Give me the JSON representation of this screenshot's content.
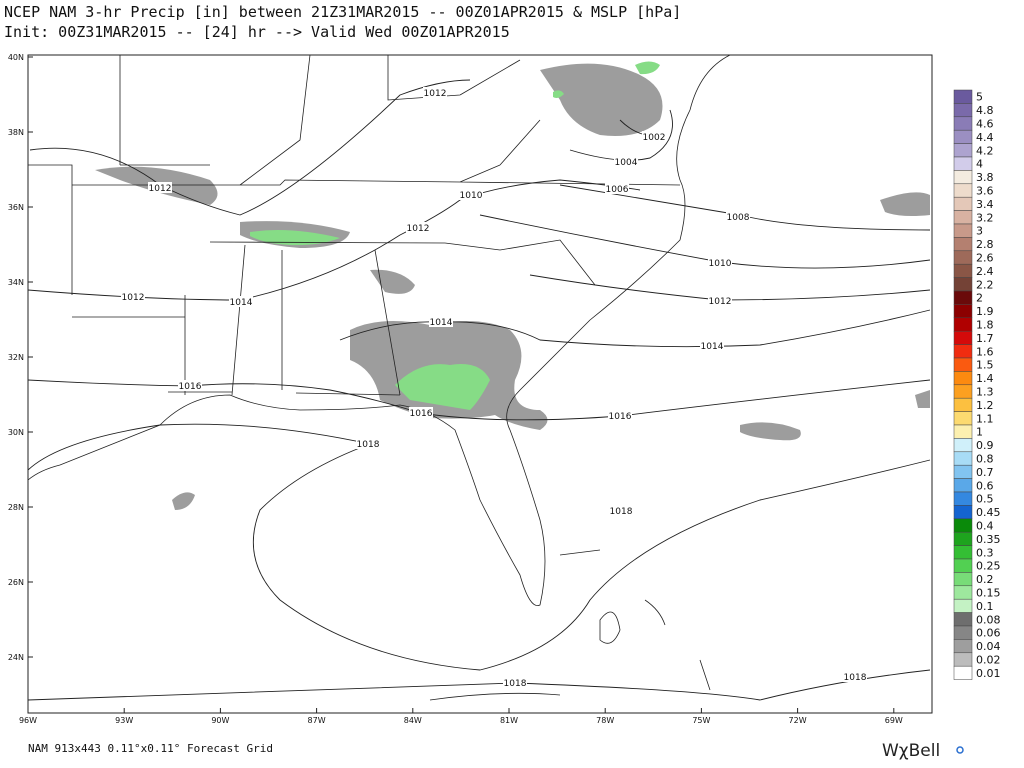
{
  "header": {
    "line1": "NCEP NAM 3-hr Precip [in] between 21Z31MAR2015 -- 00Z01APR2015 & MSLP [hPa]",
    "line2": "Init: 00Z31MAR2015 -- [24] hr --> Valid Wed 00Z01APR2015"
  },
  "map": {
    "lat_labels": [
      "40N",
      "38N",
      "36N",
      "34N",
      "32N",
      "30N",
      "28N",
      "26N",
      "24N"
    ],
    "lon_labels": [
      "96W",
      "93W",
      "90W",
      "87W",
      "84W",
      "81W",
      "78W",
      "75W",
      "72W",
      "69W"
    ],
    "isobar_labels": [
      "1012",
      "1012",
      "1010",
      "1012",
      "1006",
      "1004",
      "1002",
      "1008",
      "1010",
      "1012",
      "1014",
      "1012",
      "1014",
      "1014",
      "1016",
      "1016",
      "1016",
      "1018",
      "1018",
      "1018",
      "1018"
    ]
  },
  "colorbar": {
    "levels": [
      {
        "label": "5",
        "color": "#6a5a9e"
      },
      {
        "label": "4.8",
        "color": "#7a6aaa"
      },
      {
        "label": "4.6",
        "color": "#8a7cb6"
      },
      {
        "label": "4.4",
        "color": "#9b8fc2"
      },
      {
        "label": "4.2",
        "color": "#ada3cf"
      },
      {
        "label": "4",
        "color": "#d2ccea"
      },
      {
        "label": "3.8",
        "color": "#f4ece0"
      },
      {
        "label": "3.6",
        "color": "#eedccc"
      },
      {
        "label": "3.4",
        "color": "#e4c8b8"
      },
      {
        "label": "3.2",
        "color": "#d8b2a2"
      },
      {
        "label": "3",
        "color": "#c89a8a"
      },
      {
        "label": "2.8",
        "color": "#b48070"
      },
      {
        "label": "2.6",
        "color": "#9e6a5a"
      },
      {
        "label": "2.4",
        "color": "#8a5646"
      },
      {
        "label": "2.2",
        "color": "#744236"
      },
      {
        "label": "2",
        "color": "#6a0a0a"
      },
      {
        "label": "1.9",
        "color": "#8c0000"
      },
      {
        "label": "1.8",
        "color": "#b00000"
      },
      {
        "label": "1.7",
        "color": "#d40a0a"
      },
      {
        "label": "1.6",
        "color": "#f02c10"
      },
      {
        "label": "1.5",
        "color": "#fa5a10"
      },
      {
        "label": "1.4",
        "color": "#fc8a10"
      },
      {
        "label": "1.3",
        "color": "#fca020"
      },
      {
        "label": "1.2",
        "color": "#fcc040"
      },
      {
        "label": "1.1",
        "color": "#fcda70"
      },
      {
        "label": "1",
        "color": "#fcf0b0"
      },
      {
        "label": "0.9",
        "color": "#d0f0fa"
      },
      {
        "label": "0.8",
        "color": "#a8dcf6"
      },
      {
        "label": "0.7",
        "color": "#82c4f0"
      },
      {
        "label": "0.6",
        "color": "#5aa8e8"
      },
      {
        "label": "0.5",
        "color": "#3488e0"
      },
      {
        "label": "0.45",
        "color": "#1464d0"
      },
      {
        "label": "0.4",
        "color": "#0a8a0a"
      },
      {
        "label": "0.35",
        "color": "#1ea41e"
      },
      {
        "label": "0.3",
        "color": "#34be34"
      },
      {
        "label": "0.25",
        "color": "#52d052"
      },
      {
        "label": "0.2",
        "color": "#78dc78"
      },
      {
        "label": "0.15",
        "color": "#9ee89e"
      },
      {
        "label": "0.1",
        "color": "#c4f2c4"
      },
      {
        "label": "0.08",
        "color": "#6e6e6e"
      },
      {
        "label": "0.06",
        "color": "#868686"
      },
      {
        "label": "0.04",
        "color": "#9e9e9e"
      },
      {
        "label": "0.02",
        "color": "#bcbcbc"
      },
      {
        "label": "0.01",
        "color": "#ffffff"
      }
    ]
  },
  "footer": {
    "grid_info": "NAM 913x443 0.11°x0.11° Forecast Grid",
    "logo": "WχBell"
  }
}
